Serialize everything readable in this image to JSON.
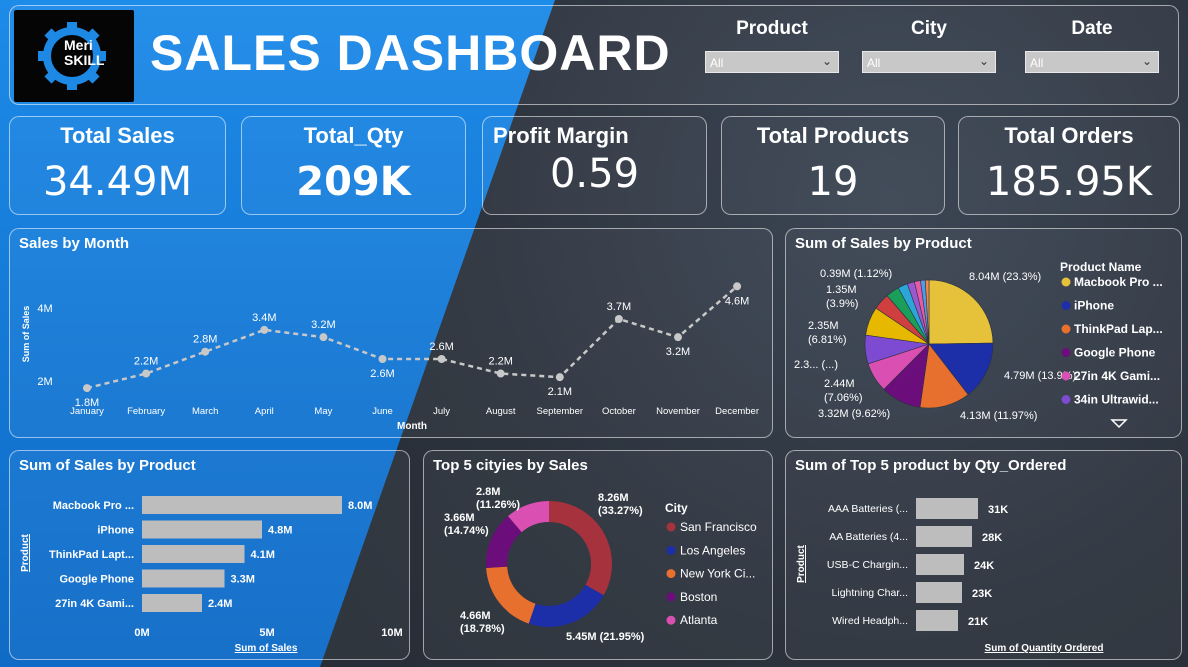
{
  "header": {
    "logo_line1": "Meri",
    "logo_line2": "SKILL",
    "title": "SALES DASHBOARD",
    "filters": [
      {
        "label": "Product",
        "value": "All"
      },
      {
        "label": "City",
        "value": "All"
      },
      {
        "label": "Date",
        "value": "All"
      }
    ]
  },
  "kpis": [
    {
      "label": "Total Sales",
      "value": "34.49M"
    },
    {
      "label": "Total_Qty",
      "value": "209K"
    },
    {
      "label": "Profit Margin",
      "value": "0.59"
    },
    {
      "label": "Total Products",
      "value": "19"
    },
    {
      "label": "Total Orders",
      "value": "185.95K"
    }
  ],
  "chart_data": [
    {
      "id": "sales_by_month",
      "type": "line",
      "title": "Sales by Month",
      "xlabel": "Month",
      "ylabel": "Sum of Sales",
      "y_ticks": [
        "2M",
        "4M"
      ],
      "ylim": [
        1.5,
        4.8
      ],
      "categories": [
        "January",
        "February",
        "March",
        "April",
        "May",
        "June",
        "July",
        "August",
        "September",
        "October",
        "November",
        "December"
      ],
      "values": [
        1.8,
        2.2,
        2.8,
        3.4,
        3.2,
        2.6,
        2.6,
        2.2,
        2.1,
        3.7,
        3.2,
        4.6
      ],
      "labels": [
        "1.8M",
        "2.2M",
        "2.8M",
        "3.4M",
        "3.2M",
        "2.6M",
        "2.6M",
        "2.2M",
        "2.1M",
        "3.7M",
        "3.2M",
        "4.6M"
      ]
    },
    {
      "id": "pie_sales_by_product",
      "type": "pie",
      "title": "Sum of Sales by Product",
      "legend_title": "Product Name",
      "slices": [
        {
          "name": "Macbook Pro ...",
          "value": 8.04,
          "label": "8.04M (23.3%)",
          "color": "#e6c13a"
        },
        {
          "name": "iPhone",
          "value": 4.79,
          "label": "4.79M (13.9%)",
          "color": "#1d2fa8"
        },
        {
          "name": "ThinkPad Lap...",
          "value": 4.13,
          "label": "4.13M (11.97%)",
          "color": "#e8702f"
        },
        {
          "name": "Google Phone",
          "value": 3.32,
          "label": "3.32M (9.62%)",
          "color": "#6b0d7a"
        },
        {
          "name": "27in 4K Gami...",
          "value": 2.44,
          "label": "2.44M (7.06%)",
          "color": "#d94fb2"
        },
        {
          "name": "34in Ultrawid...",
          "value": 2.35,
          "label": "2.3... (...)",
          "color": "#7c4bd1"
        },
        {
          "name": "",
          "value": 2.35,
          "label": "2.35M (6.81%)",
          "color": "#e6b800"
        },
        {
          "name": "",
          "value": 1.35,
          "label": "1.35M (3.9%)",
          "color": "#cf3f3f"
        },
        {
          "name": "",
          "value": 1.1,
          "label": "",
          "color": "#1b9e5a"
        },
        {
          "name": "",
          "value": 0.8,
          "label": "",
          "color": "#2aa7d8"
        },
        {
          "name": "",
          "value": 0.6,
          "label": "",
          "color": "#9b59d0"
        },
        {
          "name": "",
          "value": 0.5,
          "label": "",
          "color": "#e85aa8"
        },
        {
          "name": "",
          "value": 0.39,
          "label": "0.39M (1.12%)",
          "color": "#4f9be8"
        },
        {
          "name": "",
          "value": 0.3,
          "label": "",
          "color": "#f08a4b"
        }
      ]
    },
    {
      "id": "bar_sales_by_product",
      "type": "bar",
      "title": "Sum of Sales by Product",
      "xlabel": "Sum of Sales",
      "ylabel": "Product",
      "categories": [
        "Macbook Pro ...",
        "iPhone",
        "ThinkPad Lapt...",
        "Google Phone",
        "27in 4K Gami..."
      ],
      "values": [
        8.0,
        4.8,
        4.1,
        3.3,
        2.4
      ],
      "labels": [
        "8.0M",
        "4.8M",
        "4.1M",
        "3.3M",
        "2.4M"
      ],
      "x_ticks": [
        "0M",
        "5M",
        "10M"
      ],
      "xlim": [
        0,
        10
      ]
    },
    {
      "id": "donut_top_cities",
      "type": "pie",
      "title": "Top 5 cityies by Sales",
      "legend_title": "City",
      "slices": [
        {
          "name": "San Francisco",
          "value": 8.26,
          "label1": "8.26M",
          "label2": "(33.27%)",
          "color": "#a5323d"
        },
        {
          "name": "Los Angeles",
          "value": 5.45,
          "label1": "5.45M (21.95%)",
          "label2": "",
          "color": "#1d2fa8"
        },
        {
          "name": "New York Ci...",
          "value": 4.66,
          "label1": "4.66M",
          "label2": "(18.78%)",
          "color": "#e8702f"
        },
        {
          "name": "Boston",
          "value": 3.66,
          "label1": "3.66M",
          "label2": "(14.74%)",
          "color": "#6b0d7a"
        },
        {
          "name": "Atlanta",
          "value": 2.8,
          "label1": "2.8M",
          "label2": "(11.26%)",
          "color": "#d94fb2"
        }
      ]
    },
    {
      "id": "bar_top5_qty",
      "type": "bar",
      "title": "Sum of Top 5 product by Qty_Ordered",
      "xlabel": "Sum of Quantity Ordered",
      "ylabel": "Product",
      "categories": [
        "AAA Batteries (...",
        "AA Batteries (4...",
        "USB-C Chargin...",
        "Lightning Char...",
        "Wired Headph..."
      ],
      "values": [
        31,
        28,
        24,
        23,
        21
      ],
      "labels": [
        "31K",
        "28K",
        "24K",
        "23K",
        "21K"
      ],
      "xlim": [
        0,
        40
      ]
    }
  ]
}
